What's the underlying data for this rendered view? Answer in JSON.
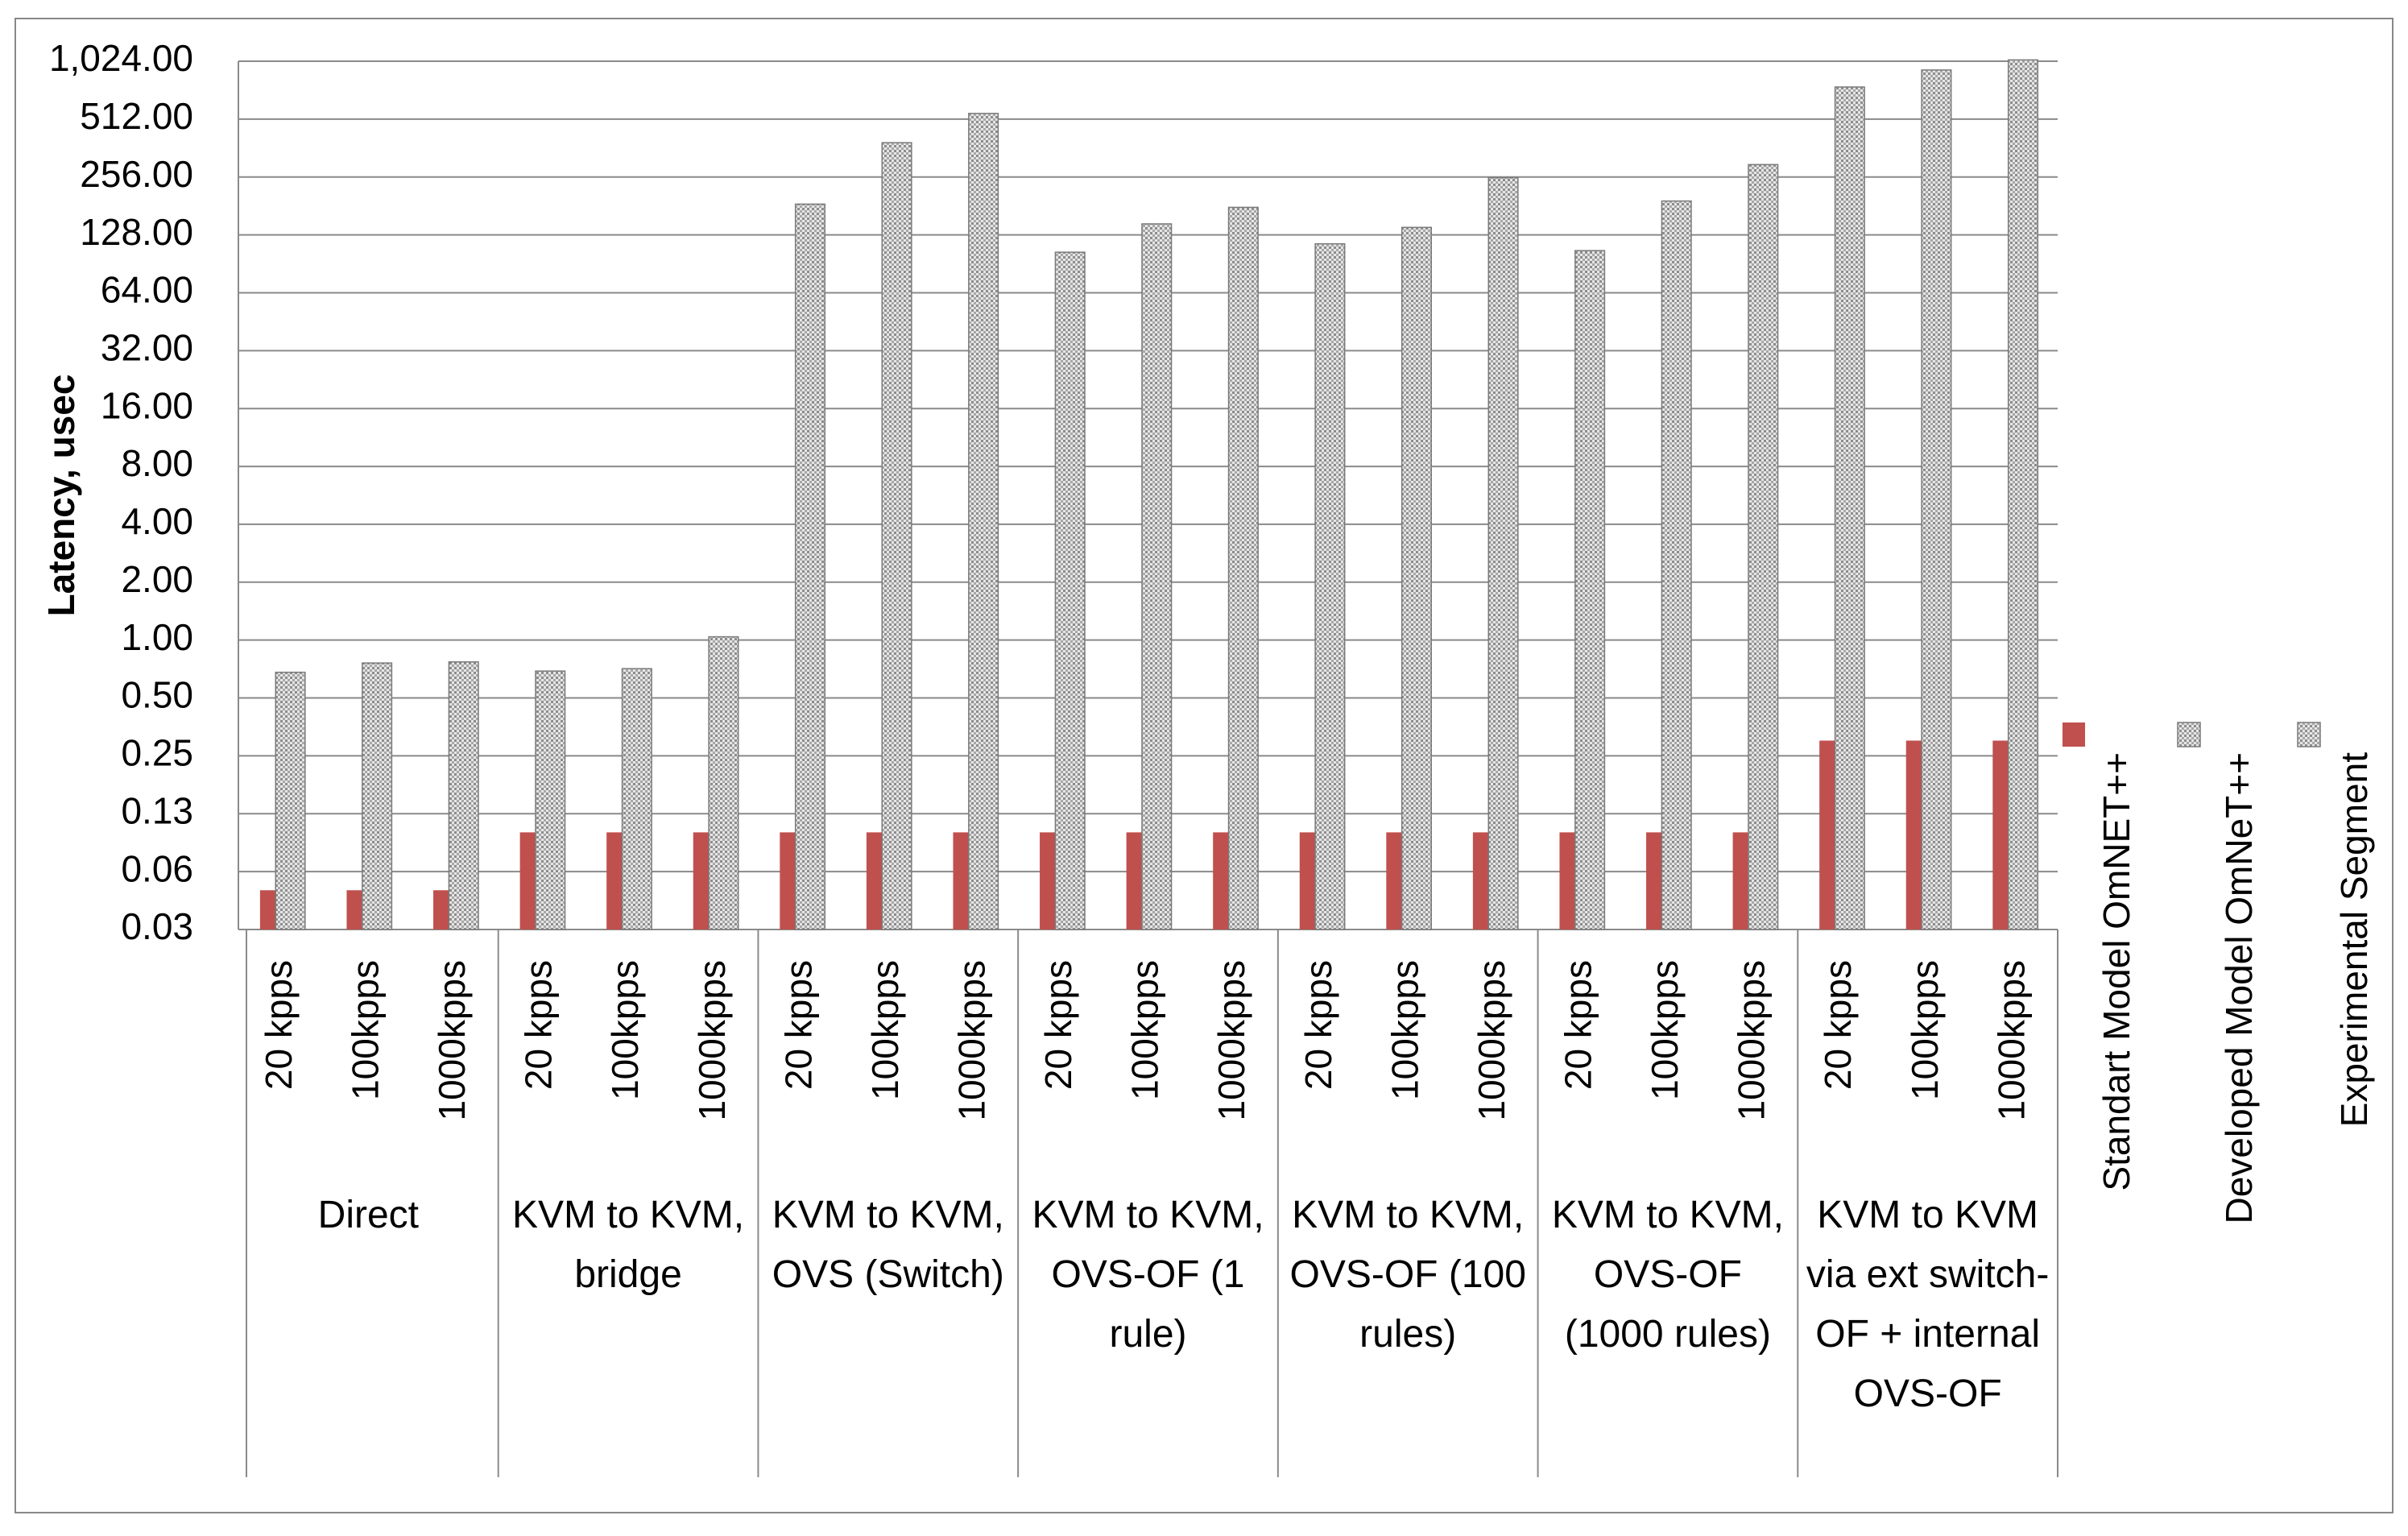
{
  "chart_data": {
    "type": "bar",
    "log_scale": true,
    "y_label": "Latency, usec",
    "categories": [
      "20 kpps",
      "100kpps",
      "1000kpps",
      "20 kpps",
      "100kpps",
      "1000kpps",
      "20 kpps",
      "100kpps",
      "1000kpps",
      "20 kpps",
      "100kpps",
      "1000kpps",
      "20 kpps",
      "100kpps",
      "1000kpps",
      "20 kpps",
      "100kpps",
      "1000kpps",
      "20 kpps",
      "100kpps",
      "1000kpps"
    ],
    "groups": [
      "Direct",
      "KVM to KVM, bridge",
      "KVM to KVM, OVS (Switch)",
      "KVM to KVM, OVS-OF (1 rule)",
      "KVM to KVM, OVS-OF (100 rules)",
      "KVM to KVM, OVS-OF (1000 rules)",
      "KVM to KVM via ext switch-OF + internal OVS-OF"
    ],
    "series": [
      {
        "name": "Standart Model OmNET++",
        "color": "#c0504d",
        "values": [
          0.05,
          0.05,
          0.05,
          0.1,
          0.1,
          0.1,
          0.1,
          0.1,
          0.1,
          0.1,
          0.1,
          0.1,
          0.1,
          0.1,
          0.1,
          0.1,
          0.1,
          0.1,
          0.3,
          0.3,
          0.3
        ]
      },
      {
        "name": "Developed Model OmNeT++",
        "color": "#c8c8c8",
        "values": [
          0.68,
          0.76,
          0.77,
          0.69,
          0.71,
          1.04,
          185,
          386,
          548,
          104,
          146,
          178,
          115,
          140,
          254,
          106,
          192,
          297,
          752,
          922,
          1040
        ]
      },
      {
        "name": "Experimental Segment",
        "color": "#c8c8c8",
        "values": [
          null,
          null,
          null,
          null,
          null,
          null,
          null,
          null,
          null,
          null,
          null,
          null,
          null,
          null,
          null,
          null,
          null,
          null,
          null,
          null,
          null
        ]
      }
    ],
    "ylim": [
      0.03125,
      1024
    ],
    "yticks": [
      {
        "value": 0.03125,
        "label": "0.03"
      },
      {
        "value": 0.0625,
        "label": "0.06"
      },
      {
        "value": 0.125,
        "label": "0.13"
      },
      {
        "value": 0.25,
        "label": "0.25"
      },
      {
        "value": 0.5,
        "label": "0.50"
      },
      {
        "value": 1,
        "label": "1.00"
      },
      {
        "value": 2,
        "label": "2.00"
      },
      {
        "value": 4,
        "label": "4.00"
      },
      {
        "value": 8,
        "label": "8.00"
      },
      {
        "value": 16,
        "label": "16.00"
      },
      {
        "value": 32,
        "label": "32.00"
      },
      {
        "value": 64,
        "label": "64.00"
      },
      {
        "value": 128,
        "label": "128.00"
      },
      {
        "value": 256,
        "label": "256.00"
      },
      {
        "value": 512,
        "label": "512.00"
      },
      {
        "value": 1024,
        "label": "1,024.00"
      }
    ],
    "grid": true,
    "legend": "right"
  }
}
